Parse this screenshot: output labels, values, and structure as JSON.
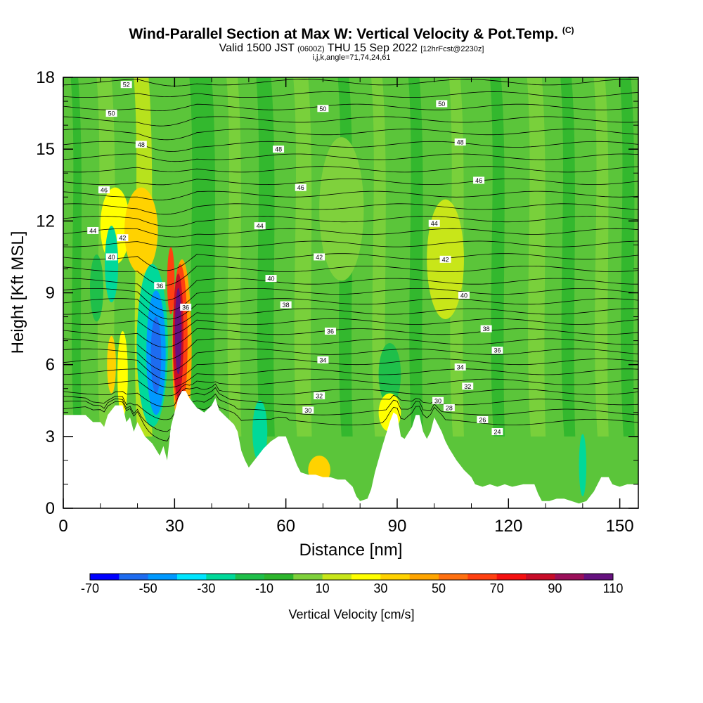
{
  "chart_data": {
    "type": "heatmap",
    "title": "Wind-Parallel Section at Max W: Vertical Velocity & Pot.Temp.",
    "title_mark": "(C)",
    "subtitle": {
      "valid_prefix": "Valid 1500 JST",
      "utc": "(0600Z)",
      "date": "THU 15 Sep 2022",
      "forecast": "[12hrFcst@2230z]"
    },
    "section_info": "i,j,k,angle=71,74,24,61",
    "xlabel": "Distance [nm]",
    "ylabel": "Height [Kft MSL]",
    "xlim": [
      0,
      155
    ],
    "ylim": [
      0,
      18
    ],
    "xticks": [
      0,
      30,
      60,
      90,
      120,
      150
    ],
    "yticks": [
      0,
      3,
      6,
      9,
      12,
      15,
      18
    ],
    "colorbar": {
      "label": "Vertical Velocity [cm/s]",
      "levels": [
        -70,
        -60,
        -50,
        -40,
        -30,
        -20,
        -10,
        0,
        10,
        20,
        30,
        40,
        50,
        60,
        70,
        80,
        90,
        100,
        110
      ],
      "tick_labels": [
        "-70",
        "-50",
        "-30",
        "-10",
        "10",
        "30",
        "50",
        "70",
        "90",
        "110"
      ],
      "colors": [
        "#0000ff",
        "#1e6cf0",
        "#0099ff",
        "#00e5ff",
        "#00d99a",
        "#1fbf4a",
        "#2db52d",
        "#7fd13c",
        "#c8e619",
        "#ffff00",
        "#ffd200",
        "#ffa500",
        "#ff7010",
        "#ff4010",
        "#f51010",
        "#c80c28",
        "#9b0f5a",
        "#66117f"
      ]
    },
    "terrain_kft": [
      [
        0,
        3.9
      ],
      [
        6,
        3.9
      ],
      [
        8,
        3.6
      ],
      [
        10,
        3.6
      ],
      [
        11,
        3.4
      ],
      [
        12,
        3.9
      ],
      [
        14,
        4.3
      ],
      [
        16,
        4.3
      ],
      [
        17,
        3.6
      ],
      [
        18,
        3.8
      ],
      [
        19,
        3.2
      ],
      [
        20,
        3.6
      ],
      [
        22,
        3.0
      ],
      [
        24,
        2.7
      ],
      [
        26,
        2.2
      ],
      [
        27,
        2.6
      ],
      [
        28,
        2.0
      ],
      [
        29,
        3.4
      ],
      [
        30,
        4.0
      ],
      [
        31,
        4.6
      ],
      [
        32,
        4.9
      ],
      [
        33,
        4.9
      ],
      [
        34,
        4.6
      ],
      [
        36,
        4.2
      ],
      [
        38,
        4.0
      ],
      [
        40,
        4.3
      ],
      [
        41,
        4.6
      ],
      [
        42,
        4.1
      ],
      [
        44,
        3.8
      ],
      [
        46,
        3.5
      ],
      [
        47,
        3.2
      ],
      [
        48,
        2.4
      ],
      [
        49,
        2.0
      ],
      [
        50,
        1.7
      ],
      [
        51,
        1.9
      ],
      [
        52,
        2.1
      ],
      [
        54,
        2.5
      ],
      [
        56,
        2.8
      ],
      [
        58,
        3.0
      ],
      [
        60,
        3.0
      ],
      [
        61,
        2.6
      ],
      [
        62,
        2.2
      ],
      [
        63,
        1.8
      ],
      [
        64,
        1.5
      ],
      [
        66,
        1.4
      ],
      [
        68,
        1.4
      ],
      [
        70,
        1.3
      ],
      [
        72,
        1.3
      ],
      [
        74,
        1.2
      ],
      [
        76,
        1.2
      ],
      [
        78,
        0.9
      ],
      [
        79,
        0.5
      ],
      [
        80,
        0.3
      ],
      [
        82,
        0.4
      ],
      [
        83,
        0.8
      ],
      [
        84,
        1.5
      ],
      [
        86,
        2.6
      ],
      [
        88,
        3.6
      ],
      [
        89,
        4.0
      ],
      [
        90,
        3.9
      ],
      [
        91,
        3.0
      ],
      [
        92,
        2.9
      ],
      [
        94,
        3.4
      ],
      [
        95,
        3.9
      ],
      [
        96,
        3.9
      ],
      [
        97,
        3.2
      ],
      [
        98,
        2.9
      ],
      [
        99,
        3.2
      ],
      [
        100,
        3.8
      ],
      [
        101,
        3.5
      ],
      [
        102,
        3.2
      ],
      [
        103,
        2.8
      ],
      [
        104,
        2.5
      ],
      [
        106,
        2.0
      ],
      [
        108,
        1.6
      ],
      [
        110,
        1.3
      ],
      [
        111,
        1.0
      ],
      [
        113,
        0.9
      ],
      [
        115,
        1.0
      ],
      [
        117,
        0.9
      ],
      [
        119,
        1.0
      ],
      [
        121,
        0.9
      ],
      [
        124,
        1.0
      ],
      [
        127,
        1.0
      ],
      [
        128,
        0.6
      ],
      [
        129,
        0.3
      ],
      [
        131,
        0.3
      ],
      [
        133,
        0.4
      ],
      [
        135,
        0.4
      ],
      [
        137,
        0.3
      ],
      [
        139,
        0.2
      ],
      [
        141,
        0.3
      ],
      [
        143,
        0.7
      ],
      [
        145,
        1.3
      ],
      [
        147,
        1.3
      ],
      [
        148,
        1.0
      ],
      [
        150,
        0.9
      ],
      [
        152,
        1.0
      ],
      [
        155,
        1.0
      ]
    ],
    "contour_labels": [
      {
        "text": "52",
        "x": 17,
        "y": 17.7
      },
      {
        "text": "50",
        "x": 13,
        "y": 16.5
      },
      {
        "text": "50",
        "x": 70,
        "y": 16.7
      },
      {
        "text": "50",
        "x": 102,
        "y": 16.9
      },
      {
        "text": "48",
        "x": 21,
        "y": 15.2
      },
      {
        "text": "48",
        "x": 58,
        "y": 15.0
      },
      {
        "text": "48",
        "x": 107,
        "y": 15.3
      },
      {
        "text": "46",
        "x": 11,
        "y": 13.3
      },
      {
        "text": "46",
        "x": 64,
        "y": 13.4
      },
      {
        "text": "46",
        "x": 112,
        "y": 13.7
      },
      {
        "text": "44",
        "x": 8,
        "y": 11.6
      },
      {
        "text": "44",
        "x": 53,
        "y": 11.8
      },
      {
        "text": "44",
        "x": 100,
        "y": 11.9
      },
      {
        "text": "42",
        "x": 16,
        "y": 11.3
      },
      {
        "text": "42",
        "x": 69,
        "y": 10.5
      },
      {
        "text": "42",
        "x": 103,
        "y": 10.4
      },
      {
        "text": "40",
        "x": 13,
        "y": 10.5
      },
      {
        "text": "40",
        "x": 56,
        "y": 9.6
      },
      {
        "text": "40",
        "x": 108,
        "y": 8.9
      },
      {
        "text": "36",
        "x": 26,
        "y": 9.3
      },
      {
        "text": "36",
        "x": 33,
        "y": 8.4
      },
      {
        "text": "38",
        "x": 60,
        "y": 8.5
      },
      {
        "text": "38",
        "x": 114,
        "y": 7.5
      },
      {
        "text": "36",
        "x": 72,
        "y": 7.4
      },
      {
        "text": "36",
        "x": 117,
        "y": 6.6
      },
      {
        "text": "34",
        "x": 70,
        "y": 6.2
      },
      {
        "text": "34",
        "x": 107,
        "y": 5.9
      },
      {
        "text": "32",
        "x": 69,
        "y": 4.7
      },
      {
        "text": "32",
        "x": 109,
        "y": 5.1
      },
      {
        "text": "30",
        "x": 66,
        "y": 4.1
      },
      {
        "text": "30",
        "x": 101,
        "y": 4.5
      },
      {
        "text": "28",
        "x": 104,
        "y": 4.2
      },
      {
        "text": "26",
        "x": 113,
        "y": 3.7
      },
      {
        "text": "24",
        "x": 117,
        "y": 3.2
      }
    ]
  }
}
